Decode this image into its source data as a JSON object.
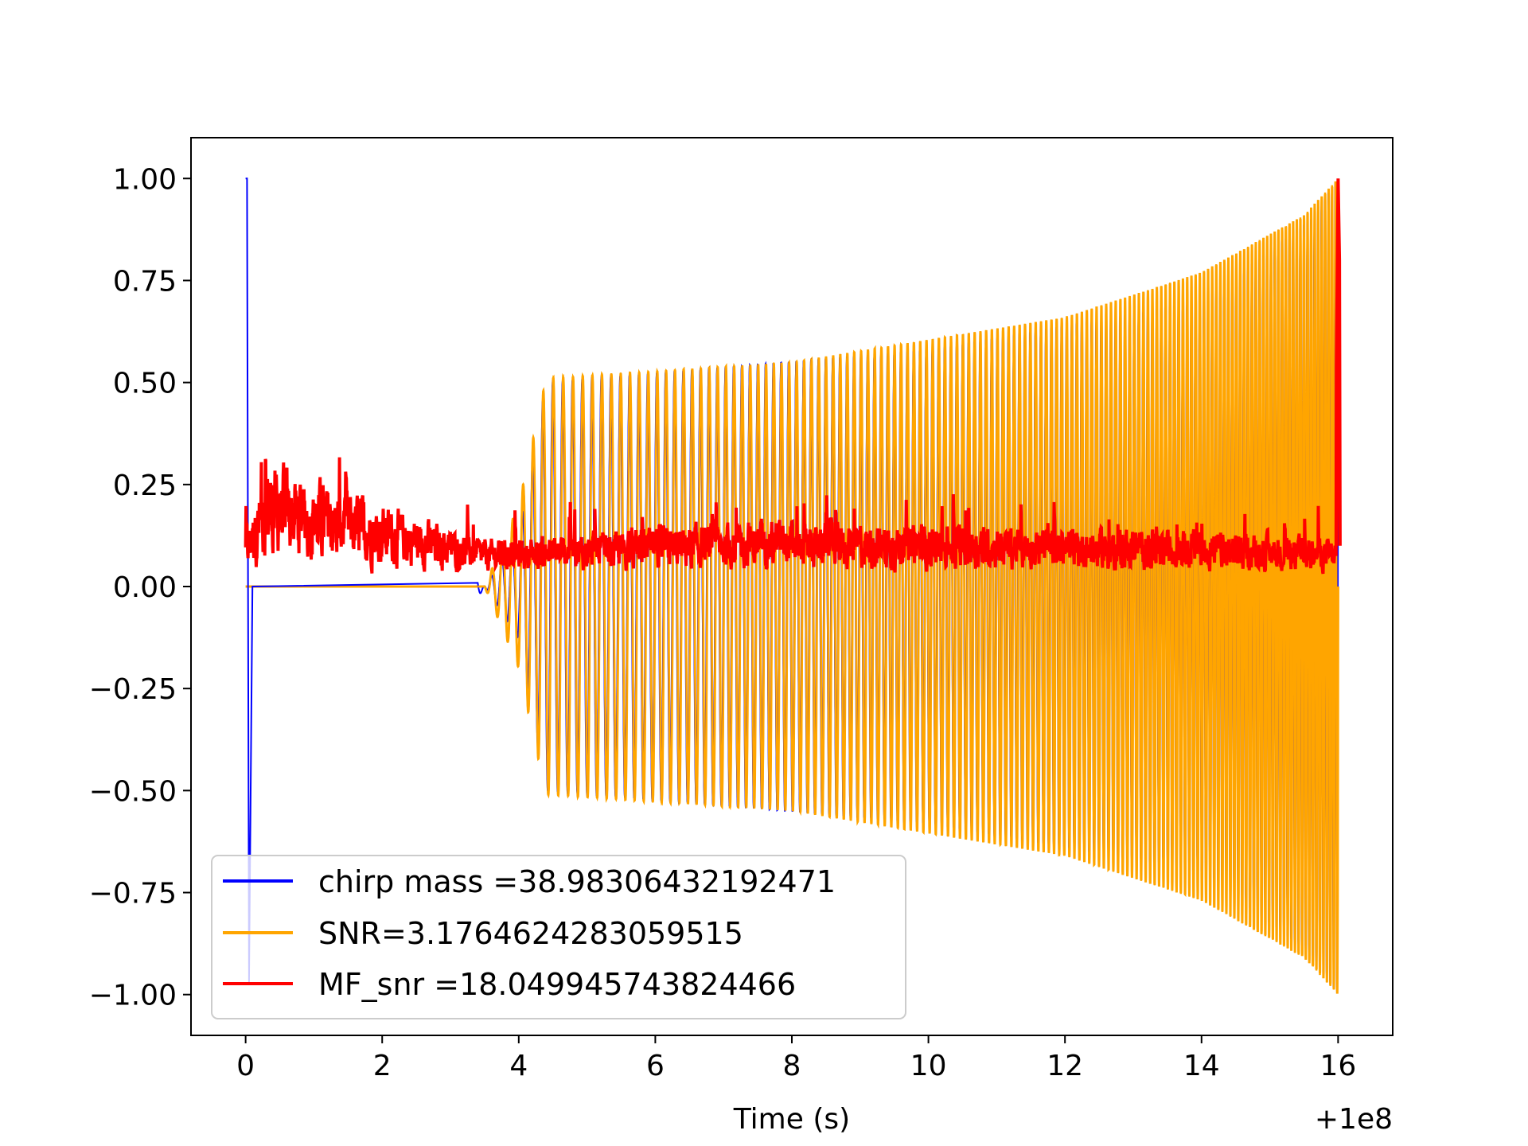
{
  "chart_data": {
    "type": "line",
    "title": "",
    "xlabel": "Time (s)",
    "ylabel": "",
    "x_offset_label": "+1e8",
    "xlim": [
      -0.8,
      16.8
    ],
    "ylim": [
      -1.1,
      1.1
    ],
    "x_ticks": [
      0,
      2,
      4,
      6,
      8,
      10,
      12,
      14,
      16
    ],
    "x_tick_labels": [
      "0",
      "2",
      "4",
      "6",
      "8",
      "10",
      "12",
      "14",
      "16"
    ],
    "y_ticks": [
      1.0,
      0.75,
      0.5,
      0.25,
      0.0,
      -0.25,
      -0.5,
      -0.75,
      -1.0
    ],
    "y_tick_labels": [
      "1.00",
      "0.75",
      "0.50",
      "0.25",
      "0.00",
      "−0.25",
      "−0.50",
      "−0.75",
      "−1.00"
    ],
    "grid": false,
    "legend_position": "lower-left",
    "series": [
      {
        "name": "chirp mass =38.98306432192471",
        "color": "#0000ff",
        "description_points": [
          [
            0,
            1.0
          ],
          [
            0.05,
            -0.97
          ],
          [
            3.5,
            0.0
          ],
          [
            4.0,
            0.13
          ],
          [
            4.4,
            0.5
          ],
          [
            10,
            0.58
          ],
          [
            14,
            0.7
          ],
          [
            15.6,
            0.9
          ],
          [
            16,
            1.0
          ]
        ]
      },
      {
        "name": "SNR=3.1764624283059515",
        "color": "#ffa500",
        "description_points": [
          [
            0,
            0.0
          ],
          [
            3.5,
            0.0
          ],
          [
            4.0,
            0.2
          ],
          [
            4.4,
            0.51
          ],
          [
            8,
            0.55
          ],
          [
            12,
            0.66
          ],
          [
            14,
            0.77
          ],
          [
            15.5,
            0.91
          ],
          [
            16,
            1.0
          ]
        ]
      },
      {
        "name": "MF_snr =18.049945743824466",
        "color": "#ff0000",
        "description_points": [
          [
            0,
            0.1
          ],
          [
            0.3,
            0.24
          ],
          [
            0.7,
            0.22
          ],
          [
            3.5,
            0.08
          ],
          [
            7.5,
            0.12
          ],
          [
            14,
            0.1
          ],
          [
            15.95,
            0.08
          ],
          [
            16.0,
            1.0
          ],
          [
            16.02,
            0.8
          ]
        ]
      }
    ]
  }
}
